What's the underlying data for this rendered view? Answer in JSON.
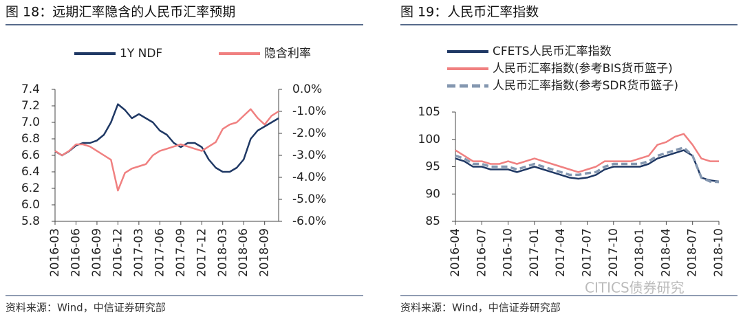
{
  "chart_data": [
    {
      "type": "line",
      "title": "图 18：远期汇率隐含的人民币汇率预期",
      "source": "资料来源：Wind，中信证券研究部",
      "categories": [
        "2016-03",
        null,
        null,
        "2016-06",
        null,
        null,
        "2016-09",
        null,
        null,
        "2016-12",
        null,
        null,
        "2017-03",
        null,
        null,
        "2017-06",
        null,
        null,
        "2017-09",
        null,
        null,
        "2017-12",
        null,
        null,
        "2018-03",
        null,
        null,
        "2018-06",
        null,
        null,
        "2018-09",
        null,
        null
      ],
      "series": [
        {
          "name": "1Y NDF",
          "color": "#1f3864",
          "values": [
            6.65,
            6.6,
            6.65,
            6.72,
            6.75,
            6.75,
            6.78,
            6.85,
            7.0,
            7.22,
            7.15,
            7.05,
            7.1,
            7.05,
            7.0,
            6.9,
            6.85,
            6.75,
            6.7,
            6.75,
            6.75,
            6.7,
            6.55,
            6.45,
            6.4,
            6.4,
            6.45,
            6.55,
            6.8,
            6.9,
            6.95,
            7.0,
            7.05
          ]
        },
        {
          "name": "隐含利率",
          "color": "#f08080",
          "axis": "y2",
          "values": [
            -2.8,
            -3.0,
            -2.8,
            -2.5,
            -2.5,
            -2.6,
            -2.8,
            -3.0,
            -3.2,
            -4.6,
            -3.8,
            -3.6,
            -3.5,
            -3.4,
            -3.0,
            -2.8,
            -2.7,
            -2.6,
            -2.5,
            -2.6,
            -2.7,
            -2.8,
            -2.6,
            -2.4,
            -1.8,
            -1.6,
            -1.5,
            -1.2,
            -0.9,
            -1.3,
            -1.6,
            -1.2,
            -1.0
          ]
        }
      ],
      "ylim": [
        5.8,
        7.4
      ],
      "yticks": [
        5.8,
        {
          "value": 6,
          "label": "6.0"
        },
        6.2,
        6.4,
        6.6,
        6.8,
        {
          "value": 7,
          "label": "7.0"
        },
        7.2,
        7.4
      ],
      "y2lim": [
        -6,
        0
      ],
      "y2ticks": [
        {
          "value": -6,
          "label": "-6.0%"
        },
        {
          "value": -5,
          "label": "-5.0%"
        },
        {
          "value": -4,
          "label": "-4.0%"
        },
        {
          "value": -3,
          "label": "-3.0%"
        },
        {
          "value": -2,
          "label": "-2.0%"
        },
        {
          "value": -1,
          "label": "-1.0%"
        },
        {
          "value": 0,
          "label": "0.0%"
        }
      ],
      "legend": "top"
    },
    {
      "type": "line",
      "title": "图 19：人民币汇率指数",
      "source": "资料来源：Wind，中信证券研究部",
      "watermark": "CITICS债券研究",
      "categories": [
        "2016-04",
        null,
        null,
        "2016-07",
        null,
        null,
        "2016-10",
        null,
        null,
        "2017-01",
        null,
        null,
        "2017-04",
        null,
        null,
        "2017-07",
        null,
        null,
        "2017-10",
        null,
        null,
        "2018-01",
        null,
        null,
        "2018-04",
        null,
        null,
        "2018-07",
        null,
        null,
        "2018-10"
      ],
      "series": [
        {
          "name": "CFETS人民币汇率指数",
          "color": "#1f3864",
          "values": [
            96.5,
            96,
            95,
            95,
            94.5,
            94.5,
            94.5,
            94,
            94.5,
            95,
            94.5,
            94,
            93.5,
            93,
            92.8,
            93,
            93.5,
            94.5,
            95,
            95,
            95,
            95,
            95.5,
            96.5,
            97,
            97.5,
            98,
            97,
            93,
            92.5,
            92.3
          ]
        },
        {
          "name": "人民币汇率指数(参考BIS货币篮子)",
          "color": "#f08080",
          "values": [
            98,
            97,
            96,
            96,
            95.5,
            95.5,
            96,
            95.5,
            96,
            96.5,
            96,
            95.5,
            95,
            94.5,
            94,
            94.5,
            95,
            96,
            96,
            96,
            96,
            96.5,
            97,
            99,
            99.5,
            100.5,
            101,
            99,
            96.5,
            96,
            96
          ]
        },
        {
          "name": "人民币汇率指数(参考SDR货币篮子)",
          "color": "#8497b0",
          "dash": true,
          "values": [
            97,
            96.5,
            95.5,
            95.5,
            95,
            95,
            95,
            94.5,
            95,
            95.5,
            95,
            94.5,
            94,
            93.5,
            93.5,
            93.8,
            94,
            95,
            95.5,
            95.5,
            95.5,
            95.5,
            96,
            97,
            97.5,
            98,
            98.5,
            97,
            93,
            92.3,
            92.2
          ]
        }
      ],
      "ylim": [
        85,
        105
      ],
      "yticks": [
        85,
        90,
        95,
        100,
        105
      ],
      "legend": "top-left"
    }
  ]
}
